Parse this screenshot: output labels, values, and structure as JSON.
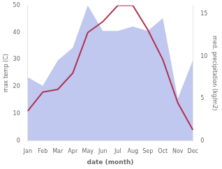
{
  "chart_data": {
    "type": "line",
    "categories": [
      "Jan",
      "Feb",
      "Mar",
      "Apr",
      "May",
      "Jun",
      "Jul",
      "Aug",
      "Sep",
      "Oct",
      "Nov",
      "Dec"
    ],
    "series": [
      {
        "type": "area",
        "color": "#c0c8f0",
        "axis": "y2",
        "values": [
          7.5,
          6.5,
          9.5,
          11,
          16,
          13,
          13,
          13.5,
          13,
          14.5,
          5,
          9.5
        ]
      },
      {
        "type": "line",
        "color": "#b03050",
        "values": [
          11,
          18,
          19,
          25,
          40,
          44,
          50,
          50,
          41,
          30,
          14,
          4
        ]
      }
    ],
    "xlabel": "date (month)",
    "ylabel": "max temp (C)",
    "y2label": "med. precipitation (kg/m2)",
    "ylim": [
      0,
      50
    ],
    "yticks": [
      0,
      10,
      20,
      30,
      40,
      50
    ],
    "y2lim": [
      0,
      16
    ],
    "y2ticks": [
      0,
      5,
      10,
      15
    ],
    "grid": false
  }
}
